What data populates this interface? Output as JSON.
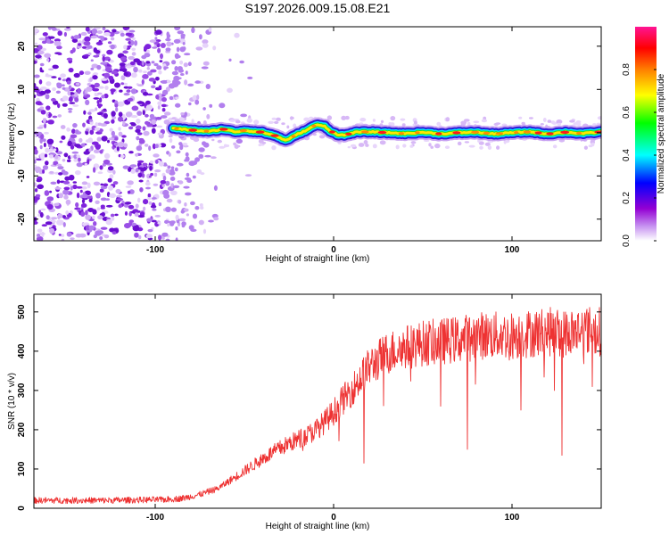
{
  "title": "S197.2026.009.15.08.E21",
  "chart_data": [
    {
      "type": "heatmap",
      "title": "S197.2026.009.15.08.E21",
      "xlabel": "Height of straight line (km)",
      "ylabel": "Frequency (Hz)",
      "xlim": [
        -168,
        150
      ],
      "ylim": [
        -25,
        24.5
      ],
      "xticks": [
        -100,
        0,
        100
      ],
      "xtick_labels": [
        "-100",
        "0",
        "100"
      ],
      "yticks": [
        -20,
        -10,
        0,
        10,
        20
      ],
      "ytick_labels": [
        "-20",
        "-10",
        "0",
        "10",
        "20"
      ],
      "noise_region_x": [
        -168,
        -70
      ],
      "signal_start_x": -90,
      "signal_frequency_track": {
        "x": [
          -90,
          -80,
          -70,
          -62,
          -55,
          -50,
          -40,
          -32,
          -27,
          -24,
          -20,
          -15,
          -10,
          -5,
          -2,
          2,
          6,
          12,
          20,
          30,
          40,
          50,
          60,
          70,
          80,
          90,
          100,
          110,
          120,
          130,
          140,
          150
        ],
        "freq": [
          1.0,
          0.6,
          0.3,
          0.8,
          0.2,
          0.5,
          0.1,
          -0.8,
          -1.8,
          -1.2,
          -0.3,
          0.6,
          1.8,
          1.5,
          0.4,
          -0.4,
          -0.6,
          0.1,
          0.2,
          0.0,
          -0.2,
          0.1,
          -0.3,
          0.0,
          0.1,
          -0.3,
          0.0,
          0.2,
          -0.3,
          0.1,
          -0.2,
          0.2
        ]
      },
      "colorbar": {
        "label": "Normalized spectral amplitude",
        "range": [
          0,
          1
        ],
        "ticks": [
          0.0,
          0.2,
          0.4,
          0.6,
          0.8
        ],
        "tick_labels": [
          "0.0",
          "0.2",
          "0.4",
          "0.6",
          "0.8"
        ],
        "colors": [
          "#ffffff",
          "#9400d3",
          "#0000ff",
          "#00ffff",
          "#00ff00",
          "#ffff00",
          "#ff7f00",
          "#ff0000",
          "#ff1493"
        ]
      }
    },
    {
      "type": "line",
      "xlabel": "Height of straight line (km)",
      "ylabel": "SNR (10 * v/v)",
      "xlim": [
        -168,
        150
      ],
      "ylim": [
        0,
        545
      ],
      "xticks": [
        -100,
        0,
        100
      ],
      "xtick_labels": [
        "-100",
        "0",
        "100"
      ],
      "yticks": [
        0,
        100,
        200,
        300,
        400,
        500
      ],
      "ytick_labels": [
        "0",
        "100",
        "200",
        "300",
        "400",
        "500"
      ],
      "series": [
        {
          "name": "SNR",
          "color": "#ee3333",
          "x": [
            -168,
            -150,
            -130,
            -110,
            -95,
            -85,
            -75,
            -65,
            -55,
            -45,
            -35,
            -25,
            -15,
            -10,
            -5,
            0,
            5,
            10,
            15,
            20,
            30,
            40,
            50,
            60,
            70,
            80,
            90,
            100,
            110,
            120,
            130,
            140,
            150
          ],
          "y": [
            20,
            20,
            20,
            21,
            22,
            25,
            35,
            50,
            80,
            110,
            140,
            165,
            185,
            200,
            220,
            245,
            275,
            300,
            330,
            360,
            395,
            410,
            420,
            425,
            430,
            440,
            440,
            440,
            445,
            450,
            445,
            455,
            450
          ]
        }
      ],
      "spikes_down": [
        {
          "x": 17,
          "y": 115
        },
        {
          "x": 75,
          "y": 150
        },
        {
          "x": 128,
          "y": 135
        },
        {
          "x": 60,
          "y": 260
        },
        {
          "x": 105,
          "y": 250
        },
        {
          "x": 145,
          "y": 310
        }
      ]
    }
  ]
}
